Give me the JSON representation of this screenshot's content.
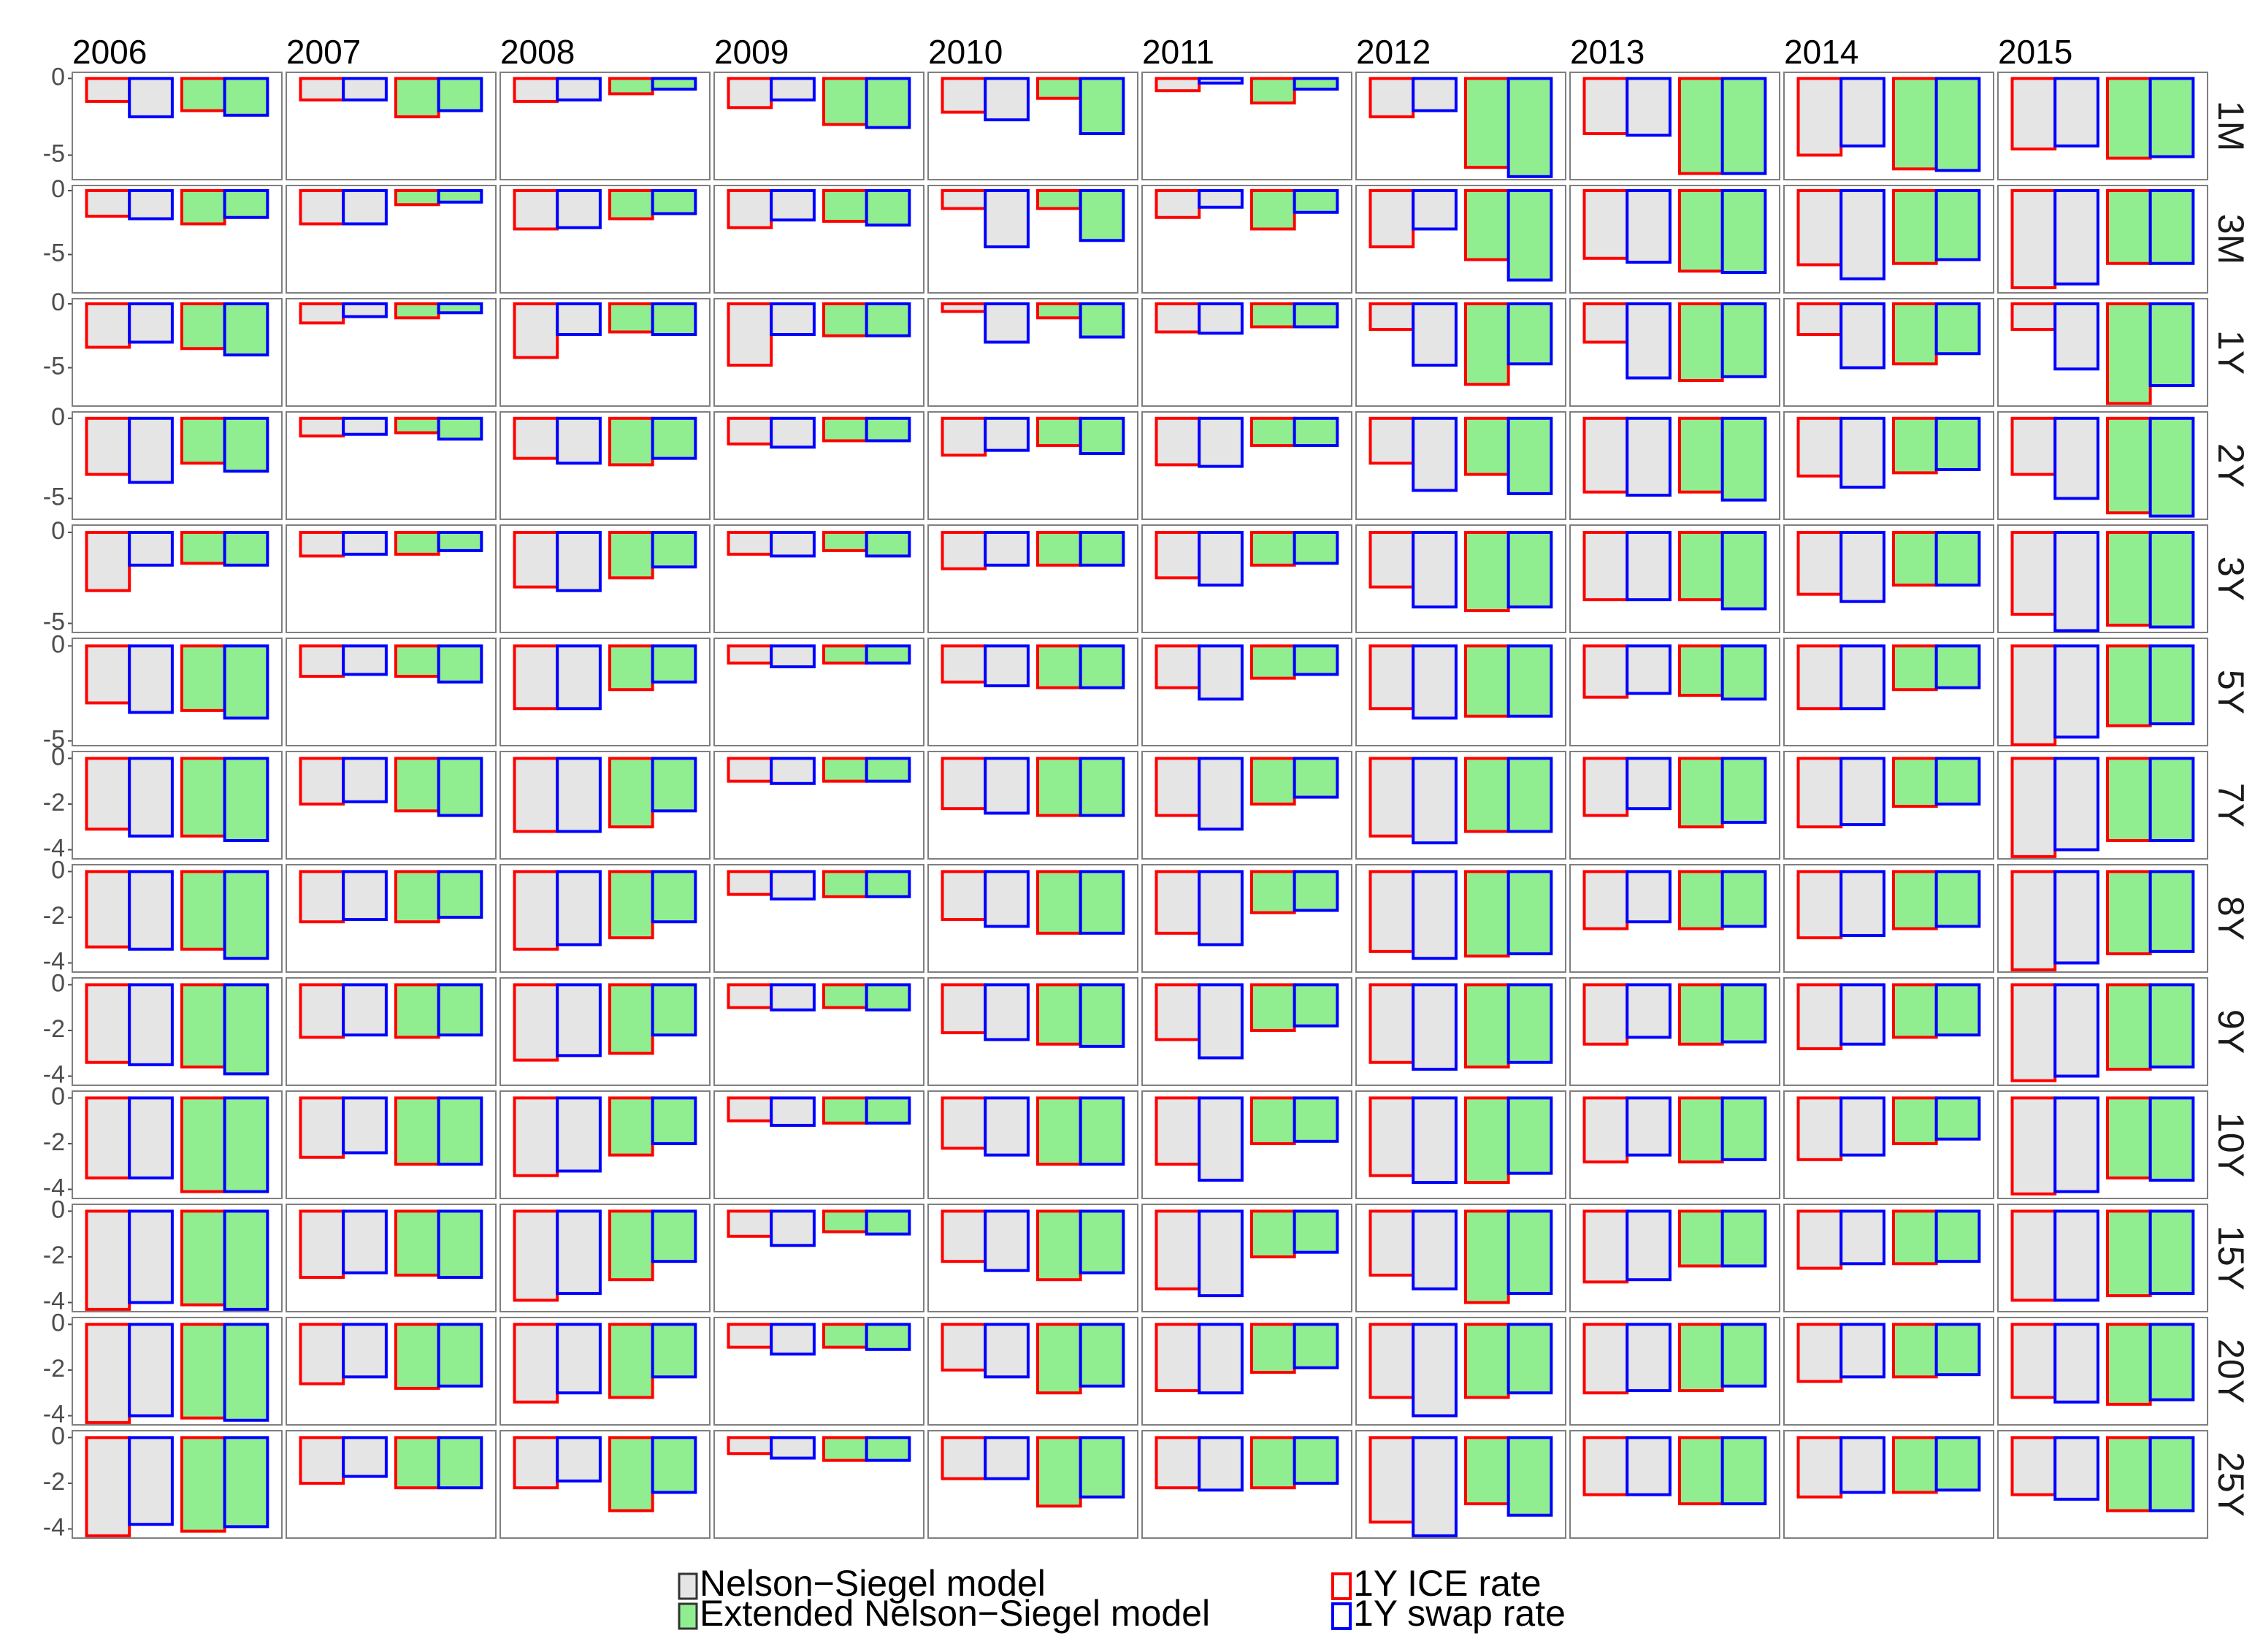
{
  "chart_data": {
    "type": "bar",
    "columns": [
      "2006",
      "2007",
      "2008",
      "2009",
      "2010",
      "2011",
      "2012",
      "2013",
      "2014",
      "2015"
    ],
    "groups": [
      {
        "name": "Nelson−Siegel model",
        "color": "#e5e5e5"
      },
      {
        "name": "Extended Nelson−Siegel model",
        "color": "#90ee90"
      }
    ],
    "series": [
      {
        "name": "1Y ICE rate",
        "color": "#ff0000"
      },
      {
        "name": "1Y swap rate",
        "color": "#0000ff"
      }
    ],
    "rows": [
      {
        "label": "1M",
        "ylim": [
          -6.6,
          0.4
        ],
        "yticks": [
          0,
          -5
        ],
        "values": [
          [
            -1.5,
            -2.5,
            -2.1,
            -2.4
          ],
          [
            -1.4,
            -1.4,
            -2.5,
            -2.1
          ],
          [
            -1.5,
            -1.4,
            -1.0,
            -0.7
          ],
          [
            -1.9,
            -1.4,
            -3.0,
            -3.2
          ],
          [
            -2.2,
            -2.7,
            -1.3,
            -3.6
          ],
          [
            -0.8,
            -0.3,
            -1.6,
            -0.7
          ],
          [
            -2.5,
            -2.1,
            -5.8,
            -6.4
          ],
          [
            -3.6,
            -3.7,
            -6.2,
            -6.2
          ],
          [
            -5.0,
            -4.4,
            -5.9,
            -6.0
          ],
          [
            -4.6,
            -4.4,
            -5.2,
            -5.1
          ]
        ]
      },
      {
        "label": "3M",
        "ylim": [
          -8,
          0.4
        ],
        "yticks": [
          0,
          -5
        ],
        "values": [
          [
            -2.0,
            -2.2,
            -2.6,
            -2.1
          ],
          [
            -2.6,
            -2.6,
            -1.1,
            -0.9
          ],
          [
            -3.0,
            -2.9,
            -2.2,
            -1.8
          ],
          [
            -2.9,
            -2.3,
            -2.4,
            -2.7
          ],
          [
            -1.4,
            -4.4,
            -1.4,
            -3.9
          ],
          [
            -2.1,
            -1.3,
            -3.0,
            -1.7
          ],
          [
            -4.4,
            -3.0,
            -5.4,
            -7.0
          ],
          [
            -5.3,
            -5.6,
            -6.3,
            -6.4
          ],
          [
            -5.8,
            -6.9,
            -5.7,
            -5.4
          ],
          [
            -7.6,
            -7.3,
            -5.7,
            -5.7
          ]
        ]
      },
      {
        "label": "1Y",
        "ylim": [
          -8,
          0.4
        ],
        "yticks": [
          0,
          -5
        ],
        "values": [
          [
            -3.4,
            -3.0,
            -3.5,
            -4.0
          ],
          [
            -1.5,
            -1.0,
            -1.1,
            -0.7
          ],
          [
            -4.2,
            -2.4,
            -2.2,
            -2.4
          ],
          [
            -4.8,
            -2.4,
            -2.5,
            -2.5
          ],
          [
            -0.6,
            -3.0,
            -1.1,
            -2.6
          ],
          [
            -2.2,
            -2.3,
            -1.8,
            -1.8
          ],
          [
            -2.0,
            -4.8,
            -6.3,
            -4.7
          ],
          [
            -3.0,
            -5.8,
            -6.0,
            -5.7
          ],
          [
            -2.4,
            -5.0,
            -4.7,
            -3.9
          ],
          [
            -2.0,
            -5.1,
            -7.8,
            -6.4
          ]
        ]
      },
      {
        "label": "2Y",
        "ylim": [
          -6.3,
          0.4
        ],
        "yticks": [
          0,
          -5
        ],
        "values": [
          [
            -3.5,
            -4.0,
            -2.8,
            -3.3
          ],
          [
            -1.1,
            -1.0,
            -0.9,
            -1.3
          ],
          [
            -2.5,
            -2.8,
            -2.9,
            -2.5
          ],
          [
            -1.6,
            -1.8,
            -1.4,
            -1.4
          ],
          [
            -2.3,
            -2.0,
            -1.7,
            -2.2
          ],
          [
            -2.9,
            -3.0,
            -1.7,
            -1.7
          ],
          [
            -2.8,
            -4.5,
            -3.5,
            -4.7
          ],
          [
            -4.6,
            -4.8,
            -4.6,
            -5.1
          ],
          [
            -3.6,
            -4.3,
            -3.4,
            -3.2
          ],
          [
            -3.5,
            -5.0,
            -5.9,
            -6.1
          ]
        ]
      },
      {
        "label": "3Y",
        "ylim": [
          -5.5,
          0.4
        ],
        "yticks": [
          0,
          -5
        ],
        "values": [
          [
            -3.2,
            -1.8,
            -1.7,
            -1.8
          ],
          [
            -1.3,
            -1.2,
            -1.2,
            -1.0
          ],
          [
            -3.0,
            -3.2,
            -2.5,
            -1.9
          ],
          [
            -1.2,
            -1.3,
            -1.0,
            -1.3
          ],
          [
            -2.0,
            -1.8,
            -1.8,
            -1.8
          ],
          [
            -2.5,
            -2.9,
            -1.8,
            -1.7
          ],
          [
            -3.0,
            -4.1,
            -4.3,
            -4.1
          ],
          [
            -3.7,
            -3.7,
            -3.7,
            -4.2
          ],
          [
            -3.4,
            -3.8,
            -2.9,
            -2.9
          ],
          [
            -4.5,
            -5.4,
            -5.1,
            -5.2
          ]
        ]
      },
      {
        "label": "5Y",
        "ylim": [
          -5.25,
          0.4
        ],
        "yticks": [
          0,
          -5
        ],
        "values": [
          [
            -3.0,
            -3.5,
            -3.4,
            -3.8
          ],
          [
            -1.6,
            -1.5,
            -1.6,
            -1.9
          ],
          [
            -3.3,
            -3.3,
            -2.3,
            -1.9
          ],
          [
            -0.9,
            -1.1,
            -0.9,
            -0.9
          ],
          [
            -1.9,
            -2.1,
            -2.2,
            -2.2
          ],
          [
            -2.2,
            -2.8,
            -1.7,
            -1.5
          ],
          [
            -3.3,
            -3.8,
            -3.7,
            -3.7
          ],
          [
            -2.7,
            -2.5,
            -2.6,
            -2.8
          ],
          [
            -3.3,
            -3.3,
            -2.3,
            -2.2
          ],
          [
            -5.2,
            -4.8,
            -4.2,
            -4.1
          ]
        ]
      },
      {
        "label": "7Y",
        "ylim": [
          -4.4,
          0.3
        ],
        "yticks": [
          0,
          -2,
          -4
        ],
        "values": [
          [
            -3.1,
            -3.4,
            -3.4,
            -3.6
          ],
          [
            -2.0,
            -1.9,
            -2.3,
            -2.5
          ],
          [
            -3.2,
            -3.2,
            -3.0,
            -2.3
          ],
          [
            -1.0,
            -1.1,
            -1.0,
            -1.0
          ],
          [
            -2.2,
            -2.4,
            -2.5,
            -2.5
          ],
          [
            -2.5,
            -3.1,
            -2.0,
            -1.7
          ],
          [
            -3.4,
            -3.7,
            -3.2,
            -3.2
          ],
          [
            -2.5,
            -2.2,
            -3.0,
            -2.8
          ],
          [
            -3.0,
            -2.9,
            -2.1,
            -2.0
          ],
          [
            -4.3,
            -4.0,
            -3.6,
            -3.6
          ]
        ]
      },
      {
        "label": "8Y",
        "ylim": [
          -4.4,
          0.3
        ],
        "yticks": [
          0,
          -2,
          -4
        ],
        "values": [
          [
            -3.3,
            -3.4,
            -3.4,
            -3.8
          ],
          [
            -2.2,
            -2.1,
            -2.2,
            -2.0
          ],
          [
            -3.4,
            -3.2,
            -2.9,
            -2.2
          ],
          [
            -1.0,
            -1.2,
            -1.1,
            -1.1
          ],
          [
            -2.1,
            -2.4,
            -2.7,
            -2.7
          ],
          [
            -2.7,
            -3.2,
            -1.8,
            -1.7
          ],
          [
            -3.5,
            -3.8,
            -3.7,
            -3.6
          ],
          [
            -2.5,
            -2.2,
            -2.5,
            -2.4
          ],
          [
            -2.9,
            -2.8,
            -2.5,
            -2.4
          ],
          [
            -4.3,
            -4.0,
            -3.6,
            -3.5
          ]
        ]
      },
      {
        "label": "9Y",
        "ylim": [
          -4.4,
          0.3
        ],
        "yticks": [
          0,
          -2,
          -4
        ],
        "values": [
          [
            -3.4,
            -3.5,
            -3.6,
            -3.9
          ],
          [
            -2.3,
            -2.2,
            -2.3,
            -2.2
          ],
          [
            -3.3,
            -3.1,
            -3.0,
            -2.2
          ],
          [
            -1.0,
            -1.1,
            -1.0,
            -1.1
          ],
          [
            -2.1,
            -2.4,
            -2.6,
            -2.7
          ],
          [
            -2.4,
            -3.2,
            -2.0,
            -1.8
          ],
          [
            -3.4,
            -3.7,
            -3.6,
            -3.4
          ],
          [
            -2.6,
            -2.3,
            -2.6,
            -2.5
          ],
          [
            -2.8,
            -2.6,
            -2.3,
            -2.2
          ],
          [
            -4.2,
            -4.0,
            -3.7,
            -3.6
          ]
        ]
      },
      {
        "label": "10Y",
        "ylim": [
          -4.4,
          0.3
        ],
        "yticks": [
          0,
          -2,
          -4
        ],
        "values": [
          [
            -3.5,
            -3.5,
            -4.1,
            -4.1
          ],
          [
            -2.6,
            -2.4,
            -2.9,
            -2.9
          ],
          [
            -3.4,
            -3.2,
            -2.5,
            -2.0
          ],
          [
            -1.0,
            -1.2,
            -1.1,
            -1.1
          ],
          [
            -2.2,
            -2.5,
            -2.9,
            -2.9
          ],
          [
            -2.9,
            -3.6,
            -2.0,
            -1.9
          ],
          [
            -3.4,
            -3.7,
            -3.7,
            -3.3
          ],
          [
            -2.8,
            -2.5,
            -2.8,
            -2.7
          ],
          [
            -2.7,
            -2.5,
            -2.0,
            -1.8
          ],
          [
            -4.2,
            -4.1,
            -3.5,
            -3.6
          ]
        ]
      },
      {
        "label": "15Y",
        "ylim": [
          -4.4,
          0.3
        ],
        "yticks": [
          0,
          -2,
          -4
        ],
        "values": [
          [
            -4.3,
            -4.0,
            -4.1,
            -4.3
          ],
          [
            -2.9,
            -2.7,
            -2.8,
            -2.9
          ],
          [
            -3.9,
            -3.6,
            -3.0,
            -2.2
          ],
          [
            -1.1,
            -1.5,
            -0.9,
            -1.0
          ],
          [
            -2.2,
            -2.6,
            -3.0,
            -2.7
          ],
          [
            -3.4,
            -3.7,
            -2.0,
            -1.8
          ],
          [
            -2.8,
            -3.4,
            -4.0,
            -3.6
          ],
          [
            -3.1,
            -3.0,
            -2.4,
            -2.4
          ],
          [
            -2.5,
            -2.3,
            -2.3,
            -2.2
          ],
          [
            -3.9,
            -3.9,
            -3.7,
            -3.6
          ]
        ]
      },
      {
        "label": "20Y",
        "ylim": [
          -4.4,
          0.3
        ],
        "yticks": [
          0,
          -2,
          -4
        ],
        "values": [
          [
            -4.3,
            -4.0,
            -4.1,
            -4.2
          ],
          [
            -2.6,
            -2.3,
            -2.8,
            -2.7
          ],
          [
            -3.4,
            -3.0,
            -3.2,
            -2.3
          ],
          [
            -1.0,
            -1.3,
            -1.0,
            -1.1
          ],
          [
            -2.0,
            -2.3,
            -3.0,
            -2.7
          ],
          [
            -2.9,
            -3.0,
            -2.1,
            -1.9
          ],
          [
            -3.2,
            -4.0,
            -3.2,
            -3.0
          ],
          [
            -3.0,
            -2.9,
            -2.9,
            -2.7
          ],
          [
            -2.5,
            -2.3,
            -2.3,
            -2.2
          ],
          [
            -3.2,
            -3.4,
            -3.5,
            -3.3
          ]
        ]
      },
      {
        "label": "25Y",
        "ylim": [
          -4.4,
          0.3
        ],
        "yticks": [
          0,
          -2,
          -4
        ],
        "values": [
          [
            -4.3,
            -3.8,
            -4.1,
            -3.9
          ],
          [
            -2.0,
            -1.7,
            -2.2,
            -2.2
          ],
          [
            -2.2,
            -1.9,
            -3.2,
            -2.4
          ],
          [
            -0.7,
            -0.9,
            -1.0,
            -1.0
          ],
          [
            -1.8,
            -1.8,
            -3.0,
            -2.6
          ],
          [
            -2.2,
            -2.3,
            -2.2,
            -2.0
          ],
          [
            -3.7,
            -4.3,
            -2.9,
            -3.4
          ],
          [
            -2.5,
            -2.5,
            -2.9,
            -2.9
          ],
          [
            -2.6,
            -2.4,
            -2.4,
            -2.3
          ],
          [
            -2.5,
            -2.7,
            -3.2,
            -3.2
          ]
        ]
      }
    ]
  }
}
